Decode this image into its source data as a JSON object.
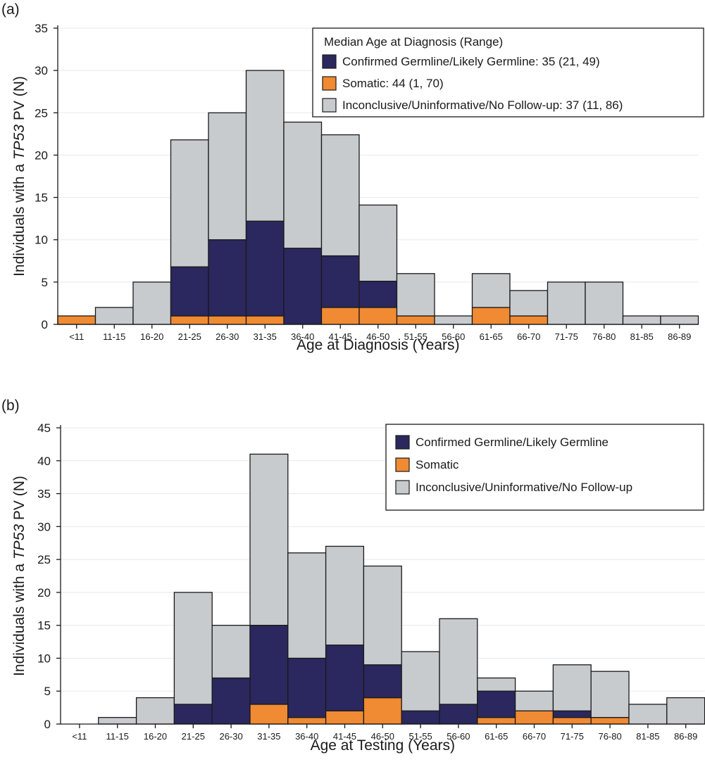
{
  "chart_data": [
    {
      "panel_label": "(a)",
      "type": "bar",
      "stacked": true,
      "categories": [
        "<11",
        "11-15",
        "16-20",
        "21-25",
        "26-30",
        "31-35",
        "36-40",
        "41-45",
        "46-50",
        "51-55",
        "56-60",
        "61-65",
        "66-70",
        "71-75",
        "76-80",
        "81-85",
        "86-89"
      ],
      "series": [
        {
          "name": "Somatic: 44 (1, 70)",
          "color": "#f08a33",
          "values": [
            1,
            0,
            0,
            1,
            1,
            1,
            0,
            2,
            2,
            1,
            0,
            2,
            1,
            0,
            0,
            0,
            0
          ]
        },
        {
          "name": "Confirmed Germline/Likely Germline: 35 (21, 49)",
          "color": "#2a285e",
          "values": [
            0,
            0,
            0,
            5.8,
            9,
            11.2,
            9,
            6.1,
            3.1,
            0,
            0,
            0,
            0,
            0,
            0,
            0,
            0
          ]
        },
        {
          "name": "Inconclusive/Uninformative/No Follow-up: 37 (11, 86)",
          "color": "#c8cbce",
          "values": [
            0,
            2,
            5,
            15,
            15,
            17.8,
            14.9,
            14.3,
            9,
            5,
            1,
            4,
            3,
            5,
            5,
            1,
            1
          ]
        }
      ],
      "legend_order": [
        1,
        0,
        2
      ],
      "legend_title": "Median Age at Diagnosis (Range)",
      "legend_position": "top-right",
      "xlabel": "Age at Diagnosis (Years)",
      "ylabel_parts": [
        "Individuals with a ",
        "TP53",
        " PV (N)"
      ],
      "ylim": [
        0,
        35
      ],
      "yticks": [
        0,
        5,
        10,
        15,
        20,
        25,
        30,
        35
      ],
      "grid": true
    },
    {
      "panel_label": "(b)",
      "type": "bar",
      "stacked": true,
      "categories": [
        "<11",
        "11-15",
        "16-20",
        "21-25",
        "26-30",
        "31-35",
        "36-40",
        "41-45",
        "46-50",
        "51-55",
        "56-60",
        "61-65",
        "66-70",
        "71-75",
        "76-80",
        "81-85",
        "86-89"
      ],
      "series": [
        {
          "name": "Somatic",
          "color": "#f08a33",
          "values": [
            0,
            0,
            0,
            0,
            0,
            3,
            1,
            2,
            4,
            0,
            0,
            1,
            2,
            1,
            1,
            0,
            0
          ]
        },
        {
          "name": "Confirmed Germline/Likely Germline",
          "color": "#2a285e",
          "values": [
            0,
            0,
            0,
            3,
            7,
            12,
            9,
            10,
            5,
            2,
            3,
            4,
            0,
            1,
            0,
            0,
            0
          ]
        },
        {
          "name": "Inconclusive/Uninformative/No Follow-up",
          "color": "#c8cbce",
          "values": [
            0,
            1,
            4,
            17,
            8,
            26,
            16,
            15,
            15,
            9,
            13,
            2,
            3,
            7,
            7,
            3,
            4
          ]
        }
      ],
      "legend_order": [
        1,
        0,
        2
      ],
      "legend_title": "",
      "legend_position": "top-right",
      "xlabel": "Age at Testing (Years)",
      "ylabel_parts": [
        "Individuals with a ",
        "TP53",
        " PV (N)"
      ],
      "ylim": [
        0,
        45
      ],
      "yticks": [
        0,
        5,
        10,
        15,
        20,
        25,
        30,
        35,
        40,
        45
      ],
      "grid": true
    }
  ]
}
